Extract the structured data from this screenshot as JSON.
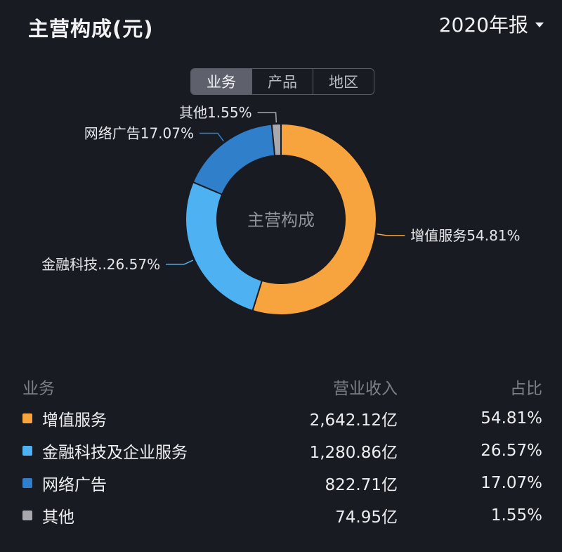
{
  "header": {
    "title": "主营构成(元)",
    "period": "2020年报"
  },
  "tabs": [
    "业务",
    "产品",
    "地区"
  ],
  "active_tab": 0,
  "center_label": "主营构成",
  "table": {
    "headers": [
      "业务",
      "营业收入",
      "占比"
    ],
    "rows": [
      {
        "name": "增值服务",
        "revenue": "2,642.12亿",
        "share": "54.81%",
        "color": "#f7a43f"
      },
      {
        "name": "金融科技及企业服务",
        "revenue": "1,280.86亿",
        "share": "26.57%",
        "color": "#4eb1f2"
      },
      {
        "name": "网络广告",
        "revenue": "822.71亿",
        "share": "17.07%",
        "color": "#2f7fcb"
      },
      {
        "name": "其他",
        "revenue": "74.95亿",
        "share": "1.55%",
        "color": "#a6a8ad"
      }
    ]
  },
  "chart_data": {
    "type": "pie",
    "style": "donut",
    "title": "主营构成",
    "categories": [
      "增值服务",
      "金融科技及企业服务",
      "网络广告",
      "其他"
    ],
    "values": [
      54.81,
      26.57,
      17.07,
      1.55
    ],
    "labels": [
      "增值服务54.81%",
      "金融科技..26.57%",
      "网络广告17.07%",
      "其他1.55%"
    ],
    "colors": [
      "#f7a43f",
      "#4eb1f2",
      "#2f7fcb",
      "#a6a8ad"
    ],
    "start": "12 o'clock",
    "direction": "clockwise"
  }
}
